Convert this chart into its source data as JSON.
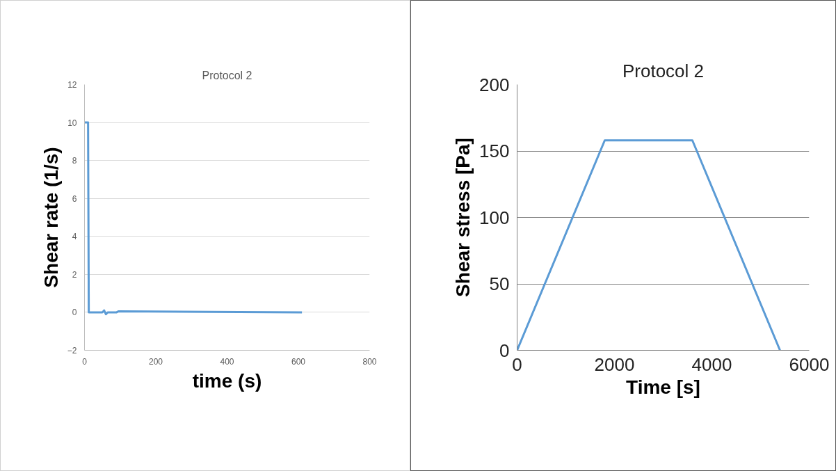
{
  "chart_data": [
    {
      "type": "line",
      "title": "Protocol 2",
      "xlabel": "time (s)",
      "ylabel": "Shear rate (1/s)",
      "color": "#5b9bd5",
      "x": [
        0,
        10,
        12,
        50,
        55,
        60,
        65,
        90,
        95,
        610
      ],
      "values": [
        10,
        10,
        0,
        0,
        0.1,
        -0.1,
        0,
        0,
        0.05,
        0
      ],
      "xlim": [
        0,
        800
      ],
      "ylim": [
        -2,
        12
      ],
      "xticks": [
        0,
        200,
        400,
        600,
        800
      ],
      "yticks": [
        -2,
        0,
        2,
        4,
        6,
        8,
        10,
        12
      ],
      "grid": "y"
    },
    {
      "type": "line",
      "title": "Protocol 2",
      "xlabel": "Time [s]",
      "ylabel": "Shear stress [Pa]",
      "color": "#5b9bd5",
      "x": [
        0,
        1800,
        3600,
        5400
      ],
      "values": [
        0,
        158,
        158,
        0
      ],
      "xlim": [
        0,
        6000
      ],
      "ylim": [
        0,
        200
      ],
      "xticks": [
        0,
        2000,
        4000,
        6000
      ],
      "yticks": [
        0,
        50,
        100,
        150,
        200
      ],
      "grid": "y"
    }
  ]
}
